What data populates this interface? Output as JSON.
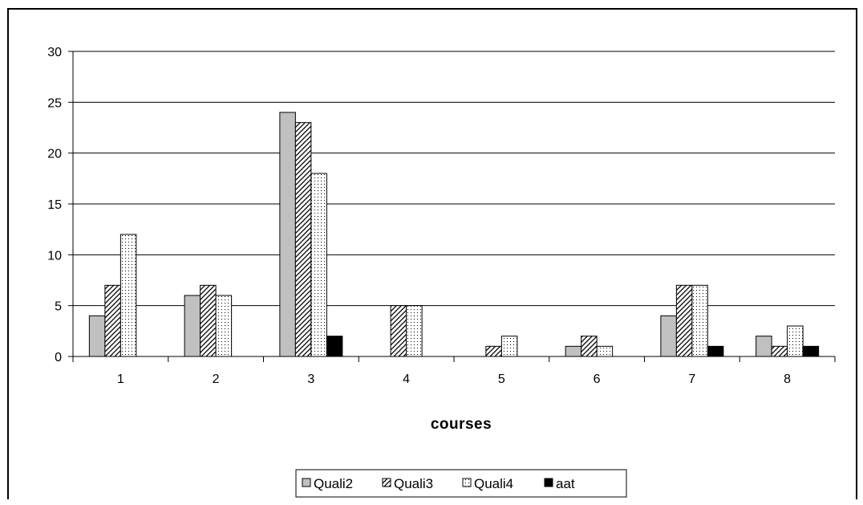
{
  "chart_data": {
    "type": "bar",
    "title": "",
    "xlabel": "courses",
    "ylabel": "",
    "categories": [
      "1",
      "2",
      "3",
      "4",
      "5",
      "6",
      "7",
      "8"
    ],
    "ylim": [
      0,
      30
    ],
    "yticks": [
      0,
      5,
      10,
      15,
      20,
      25,
      30
    ],
    "grid": true,
    "legend_position": "bottom",
    "series": [
      {
        "name": "Quali2",
        "values": [
          4,
          6,
          24,
          0,
          0,
          1,
          4,
          2
        ],
        "fill": "#c0c0c0",
        "pattern": "solid"
      },
      {
        "name": "Quali3",
        "values": [
          7,
          7,
          23,
          5,
          1,
          2,
          7,
          1
        ],
        "fill": "#ffffff",
        "pattern": "diagonal"
      },
      {
        "name": "Quali4",
        "values": [
          12,
          6,
          18,
          5,
          2,
          1,
          7,
          3
        ],
        "fill": "#ffffff",
        "pattern": "dots"
      },
      {
        "name": "aat",
        "values": [
          0,
          0,
          2,
          0,
          0,
          0,
          1,
          1
        ],
        "fill": "#000000",
        "pattern": "solid"
      }
    ]
  }
}
